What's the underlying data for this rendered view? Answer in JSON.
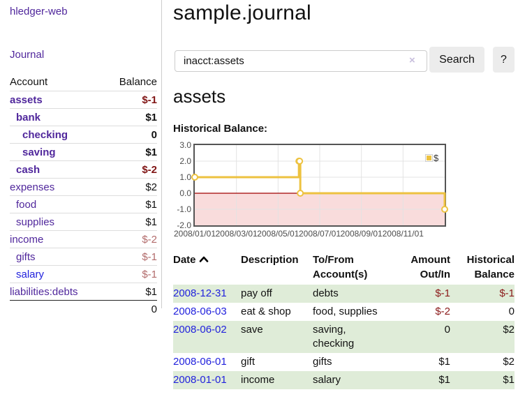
{
  "app": {
    "brand": "hledger-web"
  },
  "sidebar": {
    "journal_link": "Journal",
    "accounts": {
      "header": {
        "account": "Account",
        "balance": "Balance"
      },
      "rows": [
        {
          "name": "assets",
          "balance": "$-1",
          "indent": 0,
          "bold": true,
          "name_color": "purple",
          "balance_tone": "neg-strong"
        },
        {
          "name": "bank",
          "balance": "$1",
          "indent": 1,
          "bold": true,
          "name_color": "purple",
          "balance_tone": "normal"
        },
        {
          "name": "checking",
          "balance": "0",
          "indent": 2,
          "bold": true,
          "name_color": "purple",
          "balance_tone": "normal"
        },
        {
          "name": "saving",
          "balance": "$1",
          "indent": 2,
          "bold": true,
          "name_color": "purple",
          "balance_tone": "normal"
        },
        {
          "name": "cash",
          "balance": "$-2",
          "indent": 1,
          "bold": true,
          "name_color": "purple",
          "balance_tone": "neg-strong"
        },
        {
          "name": "expenses",
          "balance": "$2",
          "indent": 0,
          "bold": false,
          "name_color": "purple",
          "balance_tone": "normal"
        },
        {
          "name": "food",
          "balance": "$1",
          "indent": 1,
          "bold": false,
          "name_color": "purple",
          "balance_tone": "normal"
        },
        {
          "name": "supplies",
          "balance": "$1",
          "indent": 1,
          "bold": false,
          "name_color": "purple",
          "balance_tone": "normal"
        },
        {
          "name": "income",
          "balance": "$-2",
          "indent": 0,
          "bold": false,
          "name_color": "purple",
          "balance_tone": "neg-soft"
        },
        {
          "name": "gifts",
          "balance": "$-1",
          "indent": 1,
          "bold": false,
          "name_color": "purple",
          "balance_tone": "neg-soft"
        },
        {
          "name": "salary",
          "balance": "$-1",
          "indent": 1,
          "bold": false,
          "name_color": "blue",
          "balance_tone": "neg-soft"
        },
        {
          "name": "liabilities:debts",
          "balance": "$1",
          "indent": 0,
          "bold": false,
          "name_color": "purple",
          "balance_tone": "normal"
        }
      ],
      "total": "0"
    }
  },
  "main": {
    "title": "sample.journal",
    "search": {
      "value": "inacct:assets",
      "clear_icon": "×",
      "search_button": "Search",
      "help_button": "?"
    },
    "account_heading": "assets",
    "section_heading": "Historical Balance:"
  },
  "chart_data": {
    "type": "line",
    "steps": true,
    "title": "Historical Balance:",
    "series": [
      {
        "name": "$",
        "color": "#edc240",
        "points": [
          [
            "2008-01-01",
            1
          ],
          [
            "2008-06-01",
            2
          ],
          [
            "2008-06-02",
            2
          ],
          [
            "2008-06-03",
            0
          ],
          [
            "2008-12-31",
            -1
          ]
        ]
      }
    ],
    "ylim": [
      -2,
      3
    ],
    "yticks": [
      "3.0",
      "2.0",
      "1.0",
      "0.0",
      "-1.0",
      "-2.0"
    ],
    "xticks": [
      "2008/01/01",
      "2008/03/01",
      "2008/05/01",
      "2008/07/01",
      "2008/09/01",
      "2008/11/01"
    ],
    "x_range_months": 12,
    "legend": {
      "label": "$",
      "position": "top-right"
    },
    "grid": true,
    "negative_region_color": "#f9dcdc",
    "zero_line_color": "#a00000",
    "grid_color": "#e3e3e3",
    "marker": {
      "fill": "#ffffff",
      "radius": 4
    }
  },
  "register": {
    "headers": [
      {
        "line1": "Date",
        "line2": "",
        "align": "left",
        "sort_icon": "chevron-up"
      },
      {
        "line1": "Description",
        "line2": "",
        "align": "left"
      },
      {
        "line1": "To/From",
        "line2": "Account(s)",
        "align": "left"
      },
      {
        "line1": "Amount",
        "line2": "Out/In",
        "align": "right"
      },
      {
        "line1": "Historical",
        "line2": "Balance",
        "align": "right"
      }
    ],
    "rows": [
      {
        "date": "2008-12-31",
        "description": "pay off",
        "accounts": "debts",
        "amount": "$-1",
        "balance": "$-1"
      },
      {
        "date": "2008-06-03",
        "description": "eat & shop",
        "accounts": "food, supplies",
        "amount": "$-2",
        "balance": "0"
      },
      {
        "date": "2008-06-02",
        "description": "save",
        "accounts": "saving, checking",
        "amount": "0",
        "balance": "$2"
      },
      {
        "date": "2008-06-01",
        "description": "gift",
        "accounts": "gifts",
        "amount": "$1",
        "balance": "$2"
      },
      {
        "date": "2008-01-01",
        "description": "income",
        "accounts": "salary",
        "amount": "$1",
        "balance": "$1"
      }
    ]
  }
}
